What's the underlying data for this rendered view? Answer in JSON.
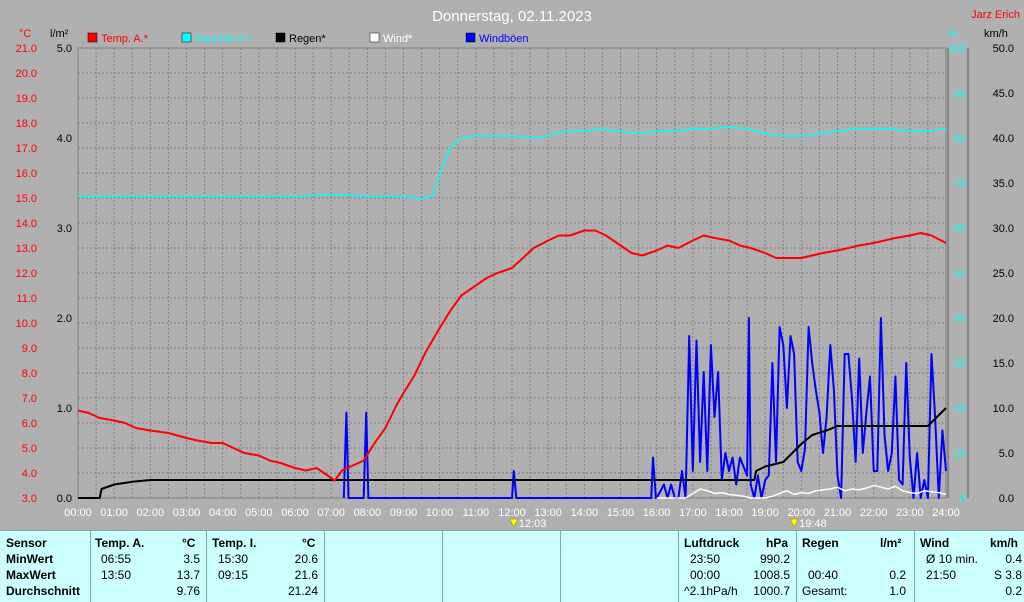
{
  "title": "Donnerstag, 02.11.2023",
  "author": "Jarz Erich",
  "colors": {
    "temp": "#ff0000",
    "humidity": "#00ffff",
    "rain": "#000000",
    "wind": "#ffffff",
    "gust": "#0000ff",
    "grid": "#808080",
    "background": "#b0b0b0",
    "table_bg": "#ccffff"
  },
  "chart_data": {
    "type": "line",
    "title": "Donnerstag, 02.11.2023",
    "x_ticks": [
      "00:00",
      "01:00",
      "02:00",
      "03:00",
      "04:00",
      "05:00",
      "06:00",
      "07:00",
      "08:00",
      "09:00",
      "10:00",
      "11:00",
      "12:00",
      "13:00",
      "14:00",
      "15:00",
      "16:00",
      "17:00",
      "18:00",
      "19:00",
      "20:00",
      "21:00",
      "22:00",
      "23:00",
      "24:00"
    ],
    "x_range": [
      0,
      24
    ],
    "grid": true,
    "legend_position": "top",
    "axes": {
      "temp": {
        "unit": "°C",
        "range": [
          3.0,
          21.0
        ],
        "ticks": [
          "21.0",
          "20.0",
          "19.0",
          "18.0",
          "17.0",
          "16.0",
          "15.0",
          "14.0",
          "13.0",
          "12.0",
          "11.0",
          "10.0",
          "9.0",
          "8.0",
          "7.0",
          "6.0",
          "5.0",
          "4.0",
          "3.0"
        ]
      },
      "rain": {
        "unit": "l/m²",
        "range": [
          0.0,
          5.0
        ],
        "ticks": [
          "5.0",
          "4.0",
          "3.0",
          "2.0",
          "1.0",
          "0.0"
        ]
      },
      "humidity": {
        "unit": "%",
        "range": [
          0,
          100
        ],
        "ticks": [
          "100",
          "90",
          "80",
          "70",
          "60",
          "50",
          "40",
          "30",
          "20",
          "10",
          "0"
        ]
      },
      "wind": {
        "unit": "km/h",
        "range": [
          0.0,
          50.0
        ],
        "ticks": [
          "50.0",
          "45.0",
          "40.0",
          "35.0",
          "30.0",
          "25.0",
          "20.0",
          "15.0",
          "10.0",
          "5.0",
          "0.0"
        ]
      }
    },
    "series": [
      {
        "name": "Temp. A.*",
        "axis": "temp",
        "color": "#ff0000",
        "x": [
          0.0,
          0.3,
          0.6,
          1.0,
          1.3,
          1.6,
          2.0,
          2.5,
          3.0,
          3.3,
          3.7,
          4.0,
          4.3,
          4.6,
          5.0,
          5.3,
          5.6,
          6.0,
          6.3,
          6.6,
          6.9,
          7.1,
          7.3,
          7.6,
          7.9,
          8.2,
          8.5,
          8.8,
          9.0,
          9.3,
          9.6,
          10.0,
          10.3,
          10.6,
          11.0,
          11.3,
          11.6,
          12.0,
          12.3,
          12.6,
          13.0,
          13.3,
          13.6,
          14.0,
          14.3,
          14.6,
          15.0,
          15.3,
          15.6,
          16.0,
          16.3,
          16.6,
          17.0,
          17.3,
          17.6,
          18.0,
          18.3,
          18.6,
          19.0,
          19.3,
          19.6,
          20.0,
          20.3,
          20.6,
          21.0,
          21.3,
          21.6,
          22.0,
          22.3,
          22.6,
          23.0,
          23.3,
          23.6,
          24.0
        ],
        "y": [
          6.5,
          6.4,
          6.2,
          6.1,
          6.0,
          5.8,
          5.7,
          5.6,
          5.4,
          5.3,
          5.2,
          5.2,
          5.0,
          4.8,
          4.7,
          4.5,
          4.4,
          4.2,
          4.1,
          4.2,
          3.9,
          3.7,
          4.1,
          4.3,
          4.5,
          5.2,
          5.8,
          6.7,
          7.2,
          7.9,
          8.8,
          9.8,
          10.5,
          11.1,
          11.5,
          11.8,
          12.0,
          12.2,
          12.6,
          13.0,
          13.3,
          13.5,
          13.5,
          13.7,
          13.7,
          13.5,
          13.1,
          12.8,
          12.7,
          12.9,
          13.1,
          13.0,
          13.3,
          13.5,
          13.4,
          13.3,
          13.1,
          13.0,
          12.8,
          12.6,
          12.6,
          12.6,
          12.7,
          12.8,
          12.9,
          13.0,
          13.1,
          13.2,
          13.3,
          13.4,
          13.5,
          13.6,
          13.5,
          13.2
        ]
      },
      {
        "name": "Feuchte A.*",
        "axis": "humidity",
        "color": "#00ffff",
        "x": [
          0,
          1,
          2,
          3,
          4,
          5,
          6,
          7,
          8,
          9,
          9.5,
          9.8,
          10.0,
          10.3,
          10.6,
          11.0,
          11.5,
          12.0,
          12.5,
          13.0,
          13.5,
          14.0,
          14.5,
          15.0,
          15.5,
          16.0,
          16.5,
          17.0,
          17.5,
          18.0,
          18.5,
          19.0,
          19.5,
          20.0,
          20.5,
          21.0,
          21.5,
          22.0,
          22.5,
          23.0,
          23.5,
          24.0
        ],
        "y": [
          67.0,
          67.0,
          67.0,
          67.0,
          67.0,
          67.0,
          67.0,
          67.5,
          67.0,
          67.0,
          66.5,
          67.0,
          72.0,
          78.0,
          80.0,
          80.5,
          80.5,
          80.5,
          80.0,
          80.5,
          81.5,
          81.5,
          82.0,
          81.5,
          81.0,
          81.5,
          81.5,
          82.0,
          82.0,
          82.5,
          82.0,
          81.0,
          80.5,
          80.5,
          81.0,
          81.5,
          82.0,
          82.0,
          82.0,
          81.5,
          81.5,
          82.0
        ]
      },
      {
        "name": "Regen*",
        "axis": "rain",
        "color": "#000000",
        "x": [
          0,
          0.6,
          0.65,
          1.0,
          1.5,
          2.0,
          3.0,
          4.0,
          5.0,
          6.0,
          7.0,
          8.0,
          9.0,
          10.0,
          11.0,
          12.0,
          13.0,
          14.0,
          15.0,
          16.0,
          17.0,
          18.0,
          18.7,
          18.75,
          19.0,
          19.5,
          20.0,
          20.3,
          20.7,
          21.0,
          21.5,
          22.0,
          22.5,
          23.0,
          23.5,
          24.0
        ],
        "y": [
          0.0,
          0.0,
          0.1,
          0.15,
          0.18,
          0.2,
          0.2,
          0.2,
          0.2,
          0.2,
          0.2,
          0.2,
          0.2,
          0.2,
          0.2,
          0.2,
          0.2,
          0.2,
          0.2,
          0.2,
          0.2,
          0.2,
          0.2,
          0.3,
          0.35,
          0.4,
          0.6,
          0.7,
          0.75,
          0.8,
          0.8,
          0.8,
          0.8,
          0.8,
          0.8,
          1.0
        ]
      },
      {
        "name": "Wind*",
        "axis": "wind",
        "color": "#ffffff",
        "x": [
          16.0,
          16.4,
          16.8,
          17.0,
          17.2,
          17.4,
          17.6,
          17.8,
          18.0,
          18.2,
          18.4,
          18.6,
          18.8,
          19.0,
          19.2,
          19.4,
          19.6,
          19.8,
          20.0,
          20.2,
          20.4,
          20.6,
          20.8,
          21.0,
          21.2,
          21.4,
          21.6,
          21.8,
          22.0,
          22.2,
          22.4,
          22.6,
          22.8,
          23.0,
          23.2,
          23.4,
          23.6,
          23.8,
          24.0
        ],
        "y": [
          0.0,
          0.0,
          0.0,
          0.5,
          1.0,
          0.8,
          0.5,
          0.6,
          0.4,
          0.3,
          0.2,
          0.0,
          0.0,
          0.0,
          0.2,
          0.5,
          0.8,
          0.4,
          0.6,
          0.5,
          0.8,
          0.9,
          1.0,
          1.2,
          0.8,
          1.0,
          0.9,
          1.1,
          1.4,
          1.2,
          1.0,
          1.3,
          0.8,
          0.6,
          0.5,
          0.8,
          0.7,
          0.6,
          0.4
        ]
      },
      {
        "name": "Windböen",
        "axis": "wind",
        "color": "#0000ff",
        "x": [
          7.35,
          7.42,
          7.48,
          7.6,
          7.9,
          7.97,
          8.03,
          12.0,
          12.05,
          12.12,
          15.85,
          15.9,
          15.98,
          16.0,
          16.2,
          16.3,
          16.4,
          16.5,
          16.6,
          16.7,
          16.8,
          16.9,
          17.0,
          17.1,
          17.2,
          17.3,
          17.4,
          17.5,
          17.6,
          17.7,
          17.8,
          17.9,
          18.0,
          18.1,
          18.2,
          18.3,
          18.4,
          18.5,
          18.55,
          18.6,
          18.7,
          18.8,
          18.9,
          19.0,
          19.1,
          19.2,
          19.3,
          19.4,
          19.5,
          19.6,
          19.7,
          19.8,
          19.9,
          20.0,
          20.1,
          20.2,
          20.3,
          20.4,
          20.5,
          20.6,
          20.7,
          20.8,
          20.9,
          21.0,
          21.1,
          21.2,
          21.3,
          21.4,
          21.5,
          21.6,
          21.7,
          21.8,
          21.9,
          22.0,
          22.1,
          22.2,
          22.3,
          22.4,
          22.5,
          22.6,
          22.7,
          22.8,
          22.9,
          23.0,
          23.1,
          23.2,
          23.3,
          23.4,
          23.5,
          23.6,
          23.7,
          23.8,
          23.9,
          24.0
        ],
        "y": [
          0.0,
          9.5,
          0.0,
          0.0,
          0.0,
          9.5,
          0.0,
          0.0,
          3.0,
          0.0,
          0.0,
          4.5,
          0.0,
          0.0,
          1.5,
          0.0,
          1.5,
          0.0,
          0.0,
          3.0,
          0.0,
          18.0,
          3.0,
          17.5,
          4.0,
          14.0,
          3.0,
          17.0,
          9.0,
          14.0,
          2.0,
          5.0,
          3.0,
          4.5,
          1.5,
          4.5,
          3.5,
          2.5,
          20.0,
          1.5,
          0.0,
          2.5,
          0.0,
          2.0,
          2.5,
          15.0,
          4.0,
          19.0,
          17.0,
          10.0,
          18.0,
          16.0,
          4.0,
          3.0,
          5.5,
          19.0,
          15.0,
          12.0,
          9.5,
          5.0,
          9.0,
          17.0,
          12.0,
          2.5,
          0.0,
          16.0,
          16.0,
          11.0,
          4.0,
          15.5,
          5.0,
          9.5,
          13.5,
          3.0,
          3.0,
          20.0,
          7.0,
          3.0,
          5.0,
          13.5,
          2.0,
          1.5,
          15.0,
          4.5,
          0.0,
          5.0,
          0.0,
          2.0,
          0.0,
          16.0,
          9.0,
          0.0,
          7.5,
          3.0
        ]
      }
    ],
    "markers": [
      {
        "label": "12:03",
        "x": 12.05
      },
      {
        "label": "19:48",
        "x": 19.8
      }
    ]
  },
  "table": {
    "row_labels": [
      "Sensor",
      "MinWert",
      "MaxWert",
      "Durchschnitt"
    ],
    "temp_a": {
      "header": "Temp. A.",
      "unit": "°C",
      "min_time": "06:55",
      "min_value": "3.5",
      "max_time": "13:50",
      "max_value": "13.7",
      "avg": "9.76"
    },
    "temp_i": {
      "header": "Temp. I.",
      "unit": "°C",
      "min_time": "15:30",
      "min_value": "20.6",
      "max_time": "09:15",
      "max_value": "21.6",
      "avg": "21.24"
    },
    "pressure": {
      "header": "Luftdruck",
      "unit": "hPa",
      "min_time": "23:50",
      "min_value": "990.2",
      "max_time": "00:00",
      "max_value": "1008.5",
      "trend_label": "^2.1hPa/h",
      "trend_value": "1000.7"
    },
    "rain": {
      "header": "Regen",
      "unit": "l/m²",
      "max_time": "00:40",
      "max_value": "0.2",
      "total_label": "Gesamt:",
      "total_value": "1.0"
    },
    "wind": {
      "header": "Wind",
      "unit": "km/h",
      "avg_label": "Ø 10 min.",
      "avg_value": "0.4",
      "max_time": "21:50",
      "max_value": "S 3.8",
      "avg": "0.2"
    }
  }
}
